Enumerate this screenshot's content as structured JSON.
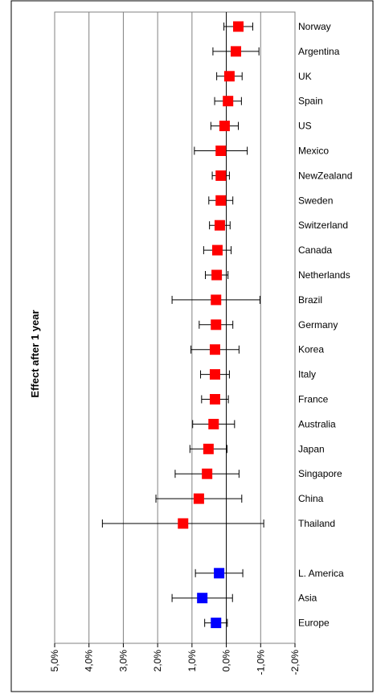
{
  "chart_data": {
    "type": "forest",
    "y_axis_label": "Effect after 1 year",
    "categories": [
      "Norway",
      "Argentina",
      "UK",
      "Spain",
      "US",
      "Mexico",
      "NewZealand",
      "Sweden",
      "Switzerland",
      "Canada",
      "Netherlands",
      "Brazil",
      "Germany",
      "Korea",
      "Italy",
      "France",
      "Australia",
      "Japan",
      "Singapore",
      "China",
      "Thailand",
      null,
      "L. America",
      "Asia",
      "Europe"
    ],
    "values": [
      -0.35,
      -0.28,
      -0.09,
      -0.05,
      0.05,
      0.16,
      0.16,
      0.16,
      0.19,
      0.26,
      0.28,
      0.3,
      0.3,
      0.33,
      0.33,
      0.33,
      0.37,
      0.52,
      0.56,
      0.8,
      1.26,
      null,
      0.21,
      0.7,
      0.3
    ],
    "errors": [
      0.42,
      0.67,
      0.37,
      0.39,
      0.4,
      0.77,
      0.25,
      0.35,
      0.3,
      0.4,
      0.33,
      1.28,
      0.49,
      0.7,
      0.42,
      0.39,
      0.61,
      0.54,
      0.93,
      1.25,
      2.35,
      null,
      0.69,
      0.88,
      0.33
    ],
    "point_colors": [
      "#ff0000",
      "#ff0000",
      "#ff0000",
      "#ff0000",
      "#ff0000",
      "#ff0000",
      "#ff0000",
      "#ff0000",
      "#ff0000",
      "#ff0000",
      "#ff0000",
      "#ff0000",
      "#ff0000",
      "#ff0000",
      "#ff0000",
      "#ff0000",
      "#ff0000",
      "#ff0000",
      "#ff0000",
      "#ff0000",
      "#ff0000",
      null,
      "#0000ff",
      "#0000ff",
      "#0000ff"
    ],
    "xlim": [
      5,
      -2
    ],
    "xticks": [
      {
        "value": 5,
        "label": "5,0%"
      },
      {
        "value": 4,
        "label": "4,0%"
      },
      {
        "value": 3,
        "label": "3,0%"
      },
      {
        "value": 2,
        "label": "2,0%"
      },
      {
        "value": 1,
        "label": "1,0%"
      },
      {
        "value": 0,
        "label": "0,0%"
      },
      {
        "value": -1,
        "label": "-1,0%"
      },
      {
        "value": -2,
        "label": "-2,0%"
      }
    ],
    "grid": true
  }
}
